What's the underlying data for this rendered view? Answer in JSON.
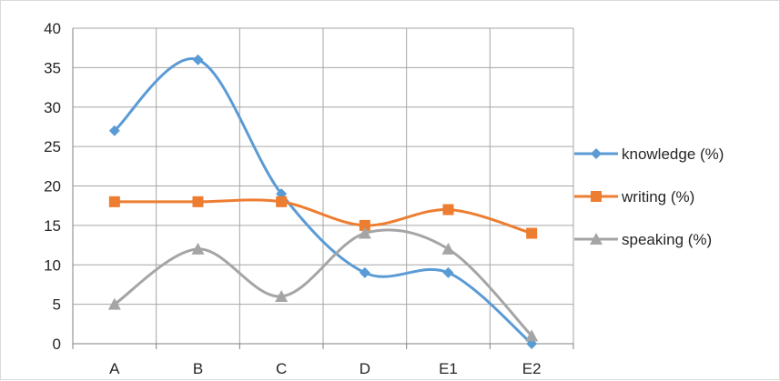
{
  "chart_data": {
    "type": "line",
    "title": "",
    "xlabel": "",
    "ylabel": "",
    "categories": [
      "A",
      "B",
      "C",
      "D",
      "E1",
      "E2"
    ],
    "ylim": [
      0,
      40
    ],
    "yticks": [
      0,
      5,
      10,
      15,
      20,
      25,
      30,
      35,
      40
    ],
    "grid": true,
    "legend_position": "right",
    "series": [
      {
        "name": "knowledge (%)",
        "values": [
          27,
          36,
          19,
          9,
          9,
          0
        ],
        "color": "#5b9bd5",
        "marker": "diamond"
      },
      {
        "name": "writing (%)",
        "values": [
          18,
          18,
          18,
          15,
          17,
          14
        ],
        "color": "#ed7d31",
        "marker": "square"
      },
      {
        "name": "speaking (%)",
        "values": [
          5,
          12,
          6,
          14,
          12,
          1
        ],
        "color": "#a5a5a5",
        "marker": "triangle"
      }
    ]
  }
}
